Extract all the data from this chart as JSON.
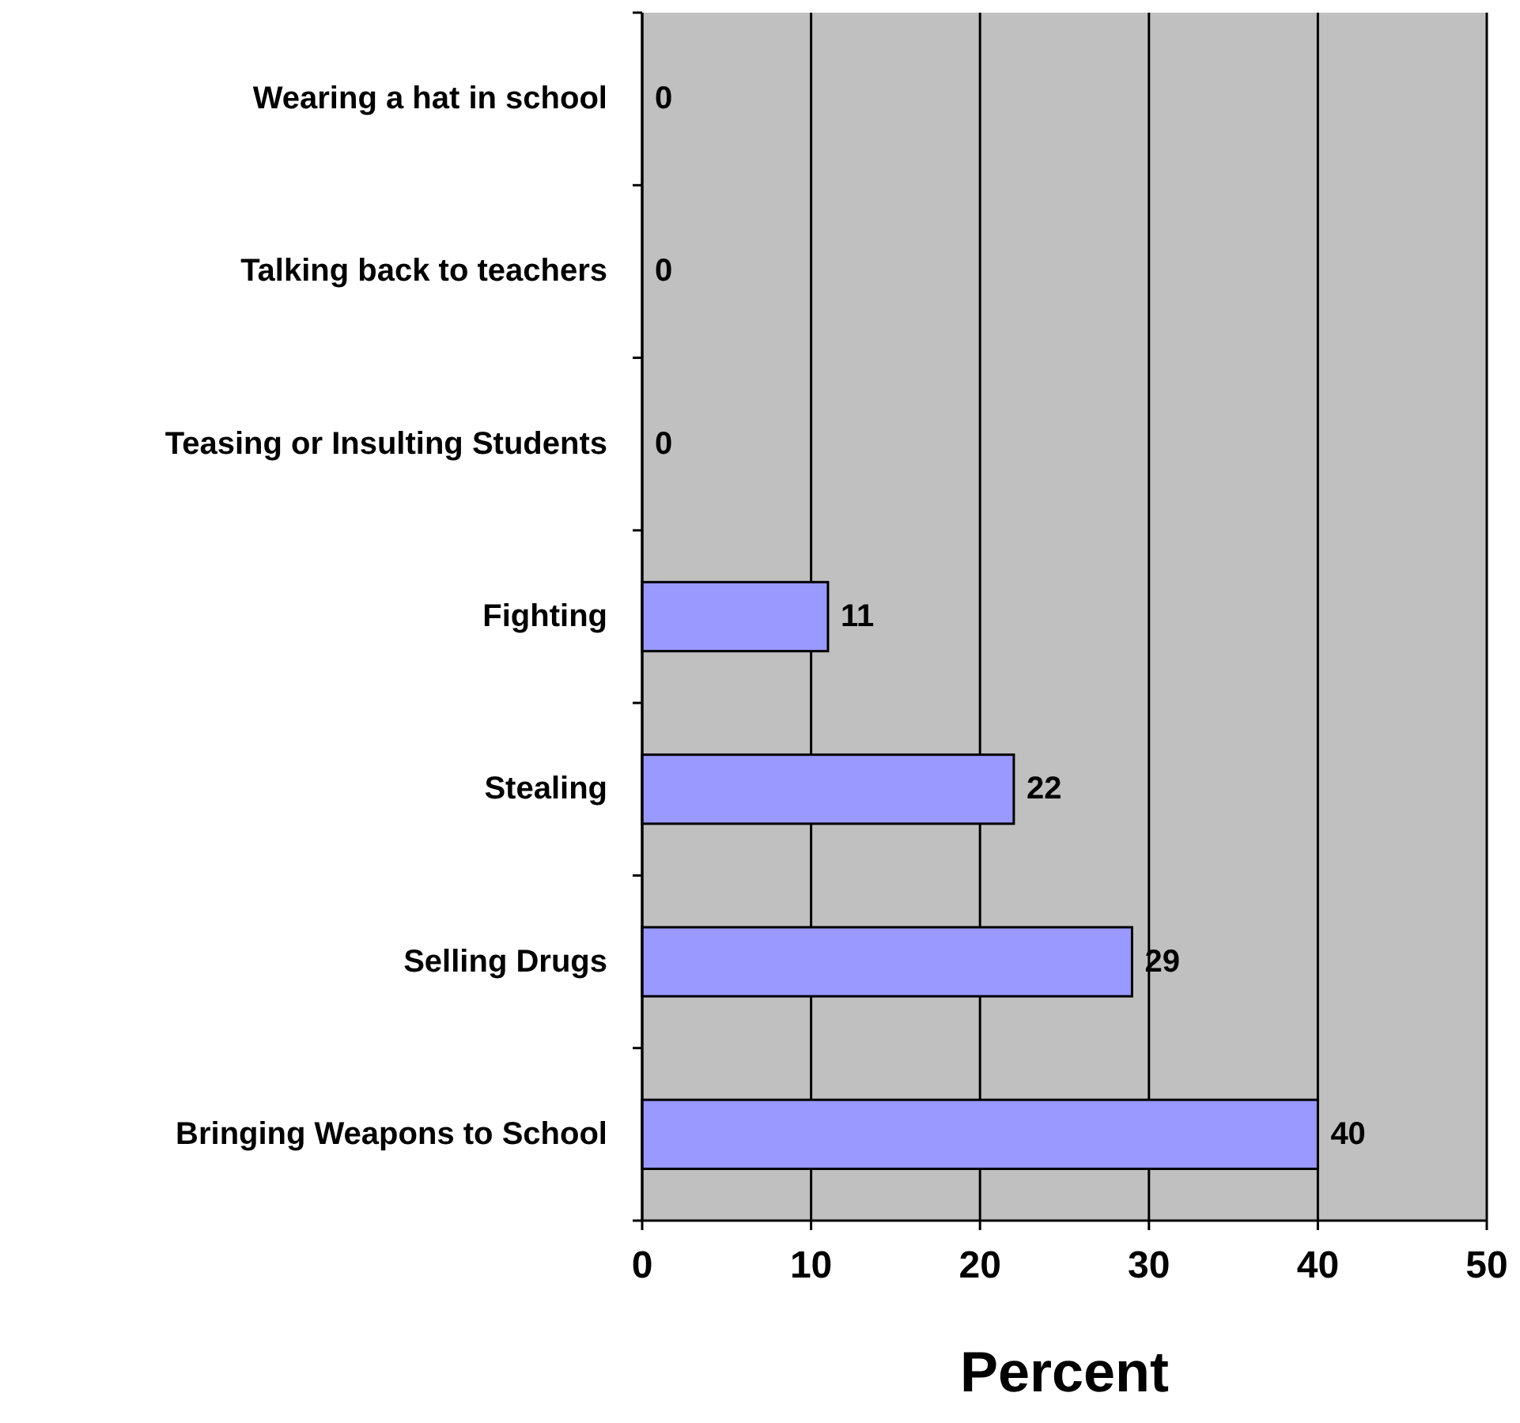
{
  "chart_data": {
    "type": "bar",
    "orientation": "horizontal",
    "xlabel": "Percent",
    "categories": [
      "Wearing a hat in school",
      "Talking back to teachers",
      "Teasing or Insulting Students",
      "Fighting",
      "Stealing",
      "Selling Drugs",
      "Bringing Weapons to School"
    ],
    "values": [
      0,
      0,
      0,
      11,
      22,
      29,
      40
    ],
    "color": "#9999ff",
    "xlim": [
      0,
      50
    ],
    "xticks": [
      0,
      10,
      20,
      30,
      40,
      50
    ],
    "grid": "x",
    "data_labels": true
  }
}
